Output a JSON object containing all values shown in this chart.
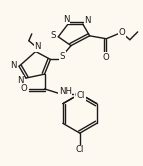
{
  "bg_color": "#fdf8f0",
  "line_color": "#1a1a1a",
  "line_width": 1.0,
  "font_size": 6.2,
  "fig_width": 1.43,
  "fig_height": 1.66,
  "dpi": 100,
  "xlim": [
    0,
    143
  ],
  "ylim": [
    0,
    166
  ]
}
